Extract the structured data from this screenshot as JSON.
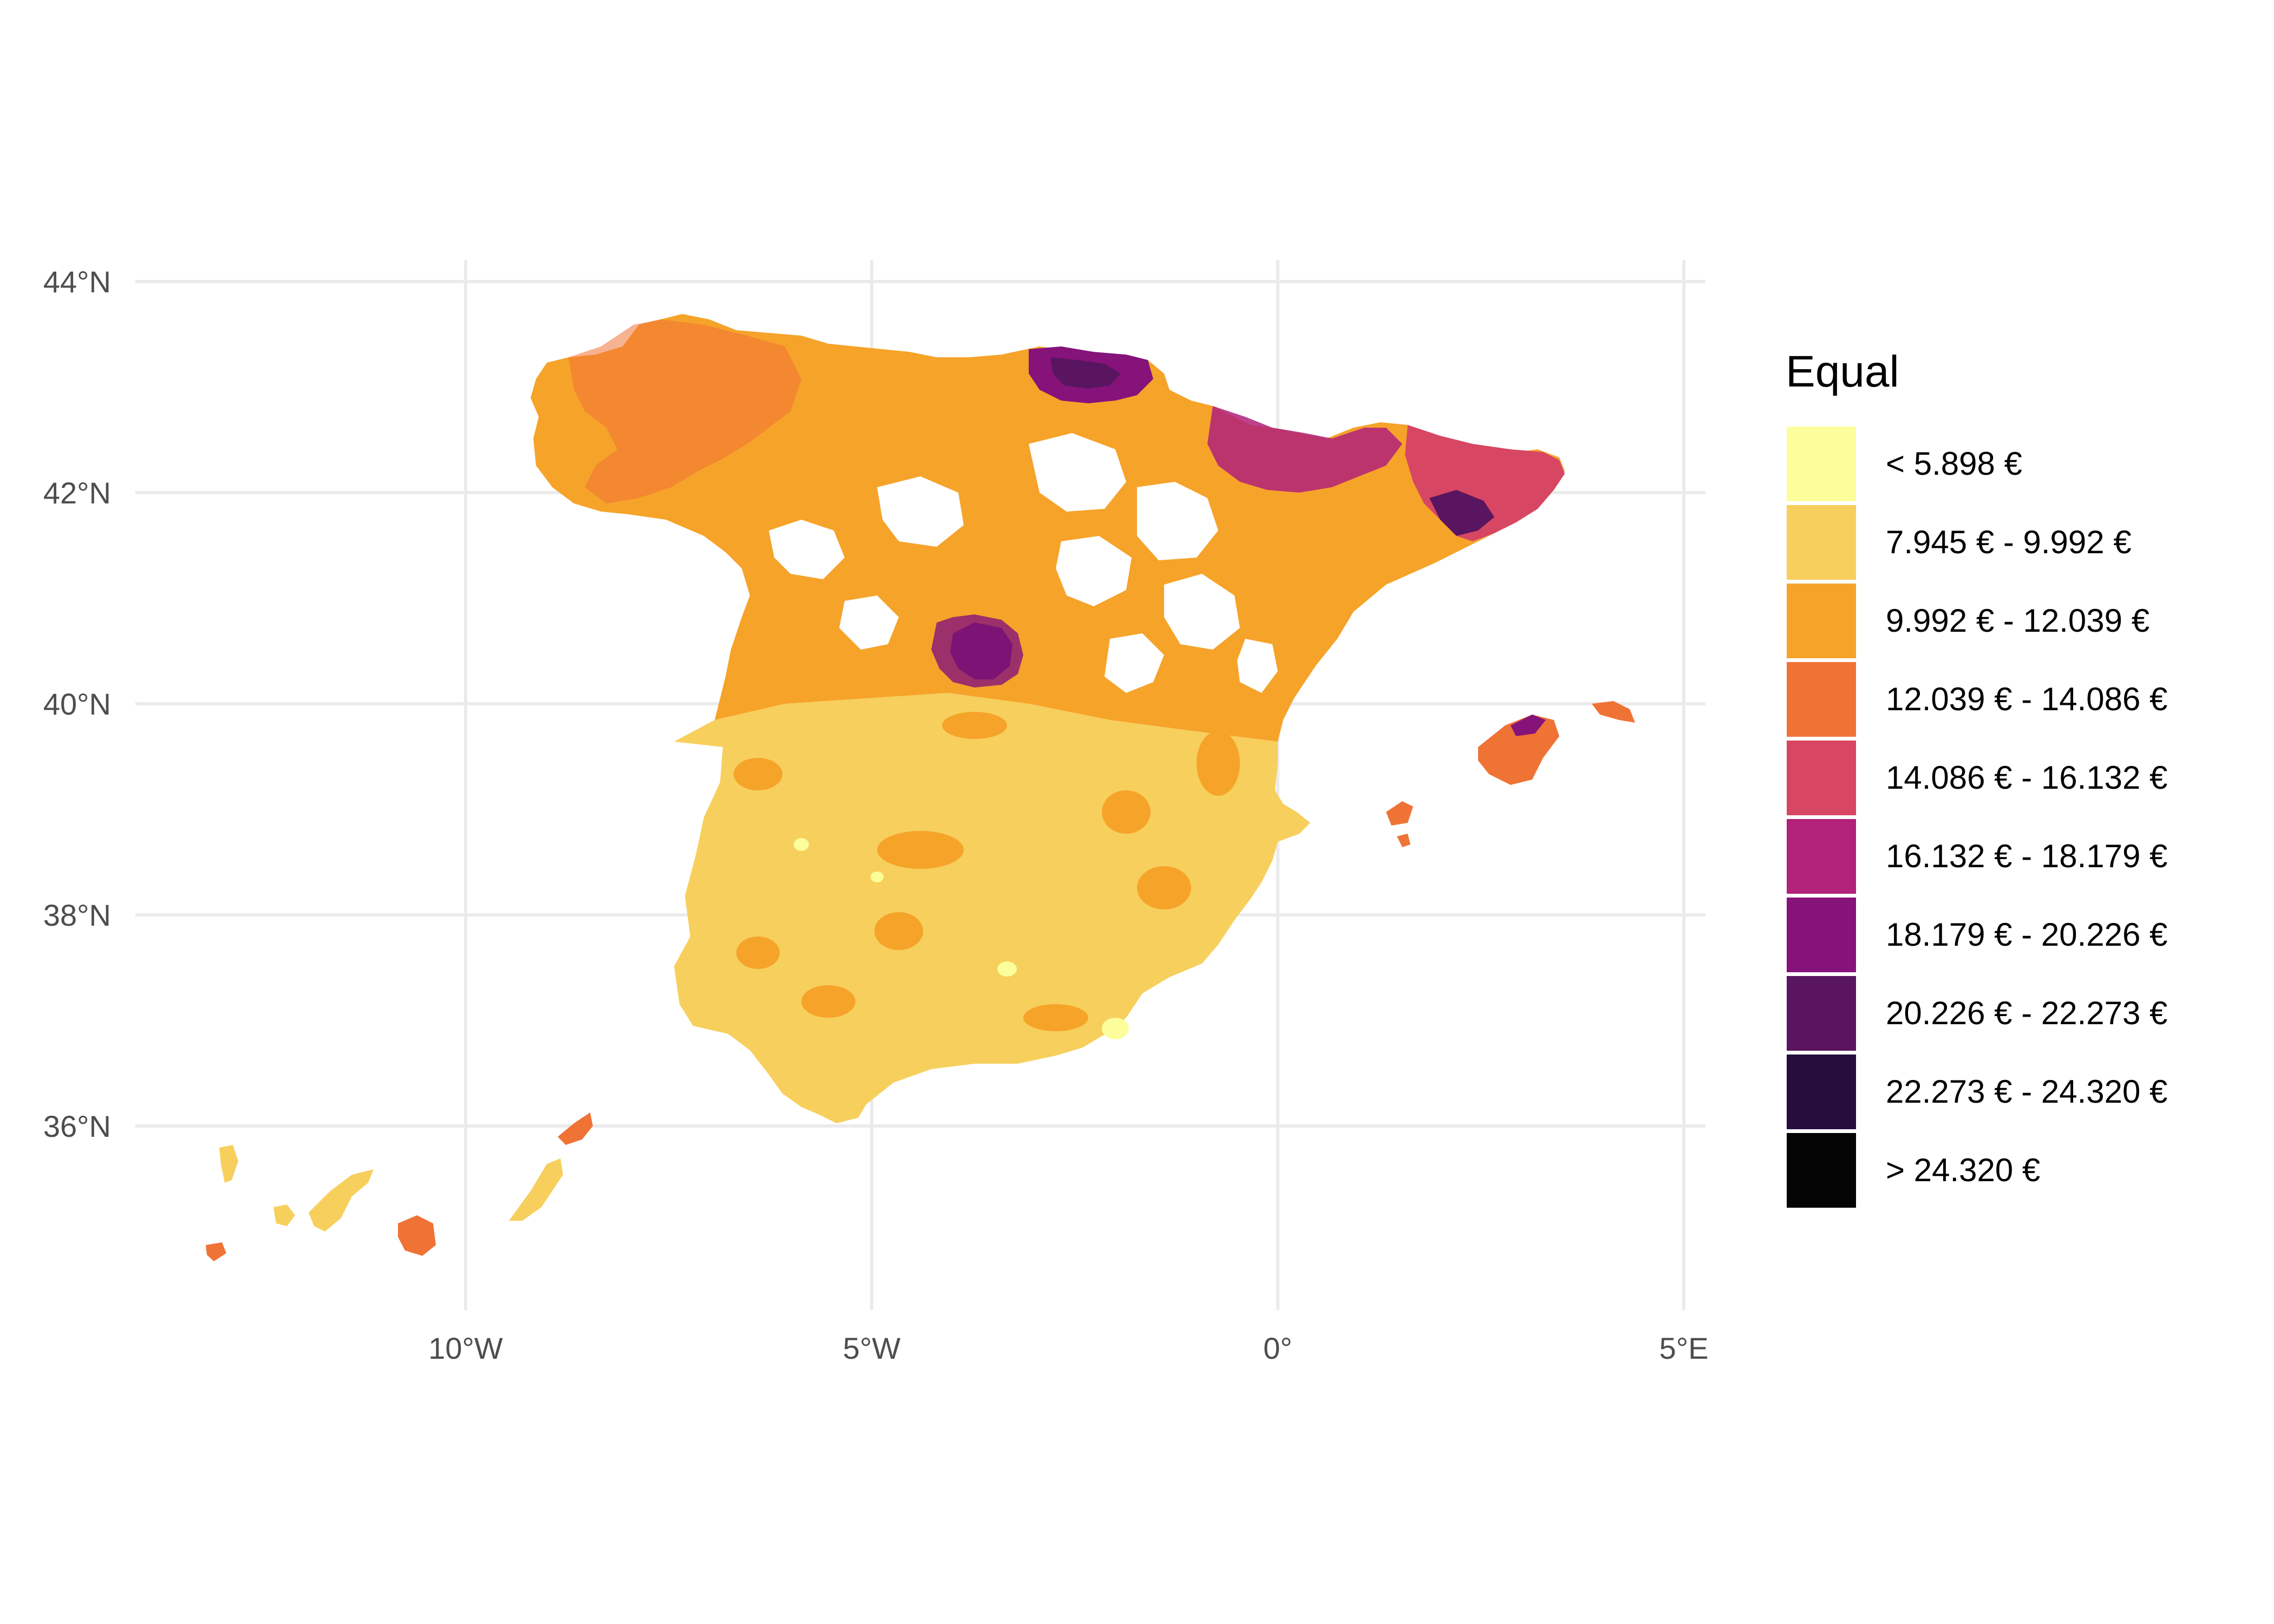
{
  "map": {
    "lon_ticks": [
      {
        "value": -10,
        "label": "10°W"
      },
      {
        "value": -5,
        "label": "5°W"
      },
      {
        "value": 0,
        "label": "0°"
      },
      {
        "value": 5,
        "label": "5°E"
      }
    ],
    "lat_ticks": [
      {
        "value": 44,
        "label": "44°N"
      },
      {
        "value": 42,
        "label": "42°N"
      },
      {
        "value": 40,
        "label": "40°N"
      },
      {
        "value": 38,
        "label": "38°N"
      },
      {
        "value": 36,
        "label": "36°N"
      }
    ],
    "grid_color": "#ebebeb"
  },
  "legend": {
    "title": "Equal",
    "items": [
      {
        "label": "< 5.898 €",
        "color": "#fcfd9b"
      },
      {
        "label": "7.945 € - 9.992 €",
        "color": "#f7cf5c"
      },
      {
        "label": "9.992 € - 12.039 €",
        "color": "#f6a32a"
      },
      {
        "label": "12.039 € - 14.086 €",
        "color": "#f07336"
      },
      {
        "label": "14.086 € - 16.132 €",
        "color": "#d74662"
      },
      {
        "label": "16.132 € - 18.179 €",
        "color": "#b2217a"
      },
      {
        "label": "18.179 € - 20.226 €",
        "color": "#85137a"
      },
      {
        "label": "20.226 € - 22.273 €",
        "color": "#591560"
      },
      {
        "label": "22.273 € - 24.320 €",
        "color": "#260d3c"
      },
      {
        "label": "> 24.320 €",
        "color": "#050505"
      }
    ]
  }
}
